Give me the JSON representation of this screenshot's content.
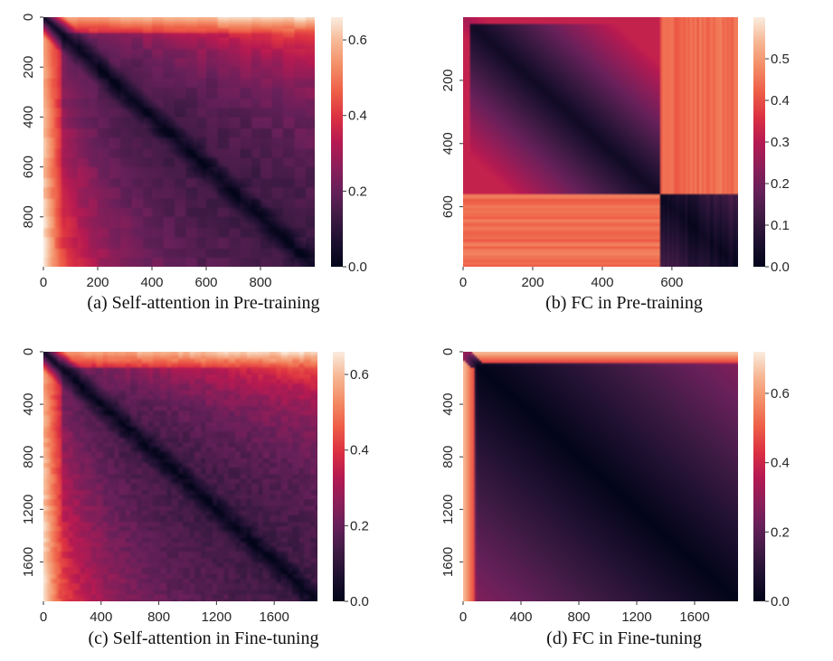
{
  "chart_data": [
    {
      "type": "heatmap",
      "caption": "(a)  Self-attention in Pre-training",
      "pattern": "self-attention",
      "n": 1000,
      "x_ticks": [
        "0",
        "200",
        "400",
        "600",
        "800"
      ],
      "x_tick_values": [
        0,
        200,
        400,
        600,
        800
      ],
      "y_ticks": [
        "0",
        "200",
        "400",
        "600",
        "800"
      ],
      "y_tick_values": [
        0,
        200,
        400,
        600,
        800
      ],
      "colorbar_ticks": [
        "0.0",
        "0.2",
        "0.4",
        "0.6"
      ],
      "colorbar_tick_values": [
        0.0,
        0.2,
        0.4,
        0.6
      ],
      "vmin": 0.0,
      "vmax": 0.66,
      "colormap": "rocket"
    },
    {
      "type": "heatmap",
      "caption": "(b)  FC in Pre-training",
      "pattern": "fc-pretrain",
      "n": 790,
      "break_index": 560,
      "x_ticks": [
        "0",
        "200",
        "400",
        "600"
      ],
      "x_tick_values": [
        0,
        200,
        400,
        600
      ],
      "y_ticks": [
        "200",
        "400",
        "600"
      ],
      "y_tick_values": [
        200,
        400,
        600
      ],
      "colorbar_ticks": [
        "0.0",
        "0.1",
        "0.2",
        "0.3",
        "0.4",
        "0.5"
      ],
      "colorbar_tick_values": [
        0.0,
        0.1,
        0.2,
        0.3,
        0.4,
        0.5
      ],
      "vmin": 0.0,
      "vmax": 0.6,
      "colormap": "rocket"
    },
    {
      "type": "heatmap",
      "caption": "(c)  Self-attention in Fine-tuning",
      "pattern": "self-attention",
      "n": 1900,
      "x_ticks": [
        "0",
        "400",
        "800",
        "1200",
        "1600"
      ],
      "x_tick_values": [
        0,
        400,
        800,
        1200,
        1600
      ],
      "y_ticks": [
        "0",
        "400",
        "800",
        "1200",
        "1600"
      ],
      "y_tick_values": [
        0,
        400,
        800,
        1200,
        1600
      ],
      "colorbar_ticks": [
        "0.0",
        "0.2",
        "0.4",
        "0.6"
      ],
      "colorbar_tick_values": [
        0.0,
        0.2,
        0.4,
        0.6
      ],
      "vmin": 0.0,
      "vmax": 0.66,
      "colormap": "rocket"
    },
    {
      "type": "heatmap",
      "caption": "(d)  FC in Fine-tuning",
      "pattern": "fc-finetune",
      "n": 1900,
      "x_ticks": [
        "0",
        "400",
        "800",
        "1200",
        "1600"
      ],
      "x_tick_values": [
        0,
        400,
        800,
        1200,
        1600
      ],
      "y_ticks": [
        "0",
        "400",
        "800",
        "1200",
        "1600"
      ],
      "y_tick_values": [
        0,
        400,
        800,
        1200,
        1600
      ],
      "colorbar_ticks": [
        "0.0",
        "0.2",
        "0.4",
        "0.6"
      ],
      "colorbar_tick_values": [
        0.0,
        0.2,
        0.4,
        0.6
      ],
      "vmin": 0.0,
      "vmax": 0.72,
      "colormap": "rocket"
    }
  ]
}
